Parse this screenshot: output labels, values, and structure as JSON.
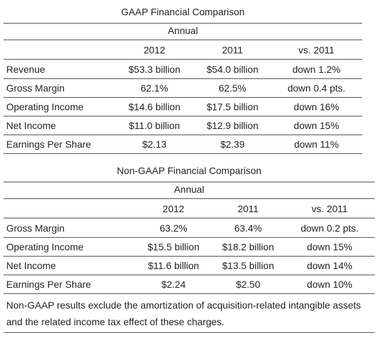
{
  "gaap": {
    "title": "GAAP Financial Comparison",
    "period": "Annual",
    "columns": [
      "2012",
      "2011",
      "vs. 2011"
    ],
    "rows": [
      [
        "Revenue",
        "$53.3 billion",
        "$54.0 billion",
        "down 1.2%"
      ],
      [
        "Gross Margin",
        "62.1%",
        "62.5%",
        "down 0.4 pts."
      ],
      [
        "Operating Income",
        "$14.6 billion",
        "$17.5 billion",
        "down 16%"
      ],
      [
        "Net Income",
        "$11.0 billion",
        "$12.9 billion",
        "down 15%"
      ],
      [
        "Earnings Per Share",
        "$2.13",
        "$2.39",
        "down 11%"
      ]
    ]
  },
  "non_gaap": {
    "title": "Non-GAAP Financial Comparison",
    "period": "Annual",
    "columns": [
      "2012",
      "2011",
      "vs. 2011"
    ],
    "rows": [
      [
        "Gross Margin",
        "63.2%",
        "63.4%",
        "down 0.2 pts."
      ],
      [
        "Operating Income",
        "$15.5 billion",
        "$18.2 billion",
        "down 15%"
      ],
      [
        "Net Income",
        "$11.6 billion",
        "$13.5 billion",
        "down 14%"
      ],
      [
        "Earnings Per Share",
        "$2.24",
        "$2.50",
        "down 10%"
      ]
    ],
    "note": "Non-GAAP results exclude the amortization of acquisition-related intangible assets and the related income tax effect of these charges."
  }
}
